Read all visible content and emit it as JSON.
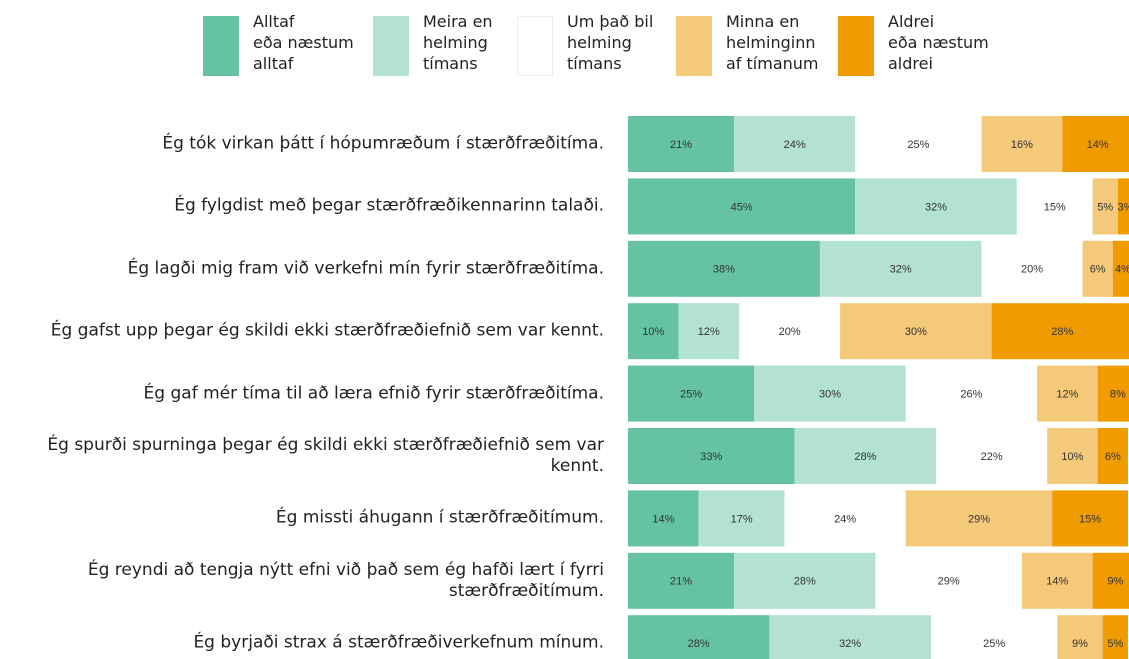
{
  "chart_data": {
    "type": "stacked_barh",
    "categories": [
      "Ég tók virkan þátt í hópumræðum í stærðfræðitíma.",
      "Ég fylgdist með þegar stærðfræðikennarinn talaði.",
      "Ég lagði mig fram við verkefni mín fyrir stærðfræðitíma.",
      "Ég gafst upp þegar ég skildi ekki stærðfræðiefnið sem var kennt.",
      "Ég gaf mér tíma til að læra efnið fyrir stærðfræðitíma.",
      "Ég spurði spurninga þegar ég skildi ekki stærðfræðiefnið sem var kennt.",
      "Ég missti áhugann í stærðfræðitímum.",
      "Ég reyndi að tengja nýtt efni við það sem ég hafði lært í fyrri stærðfræðitímum.",
      "Ég byrjaði strax á stærðfræðiverkefnum mínum."
    ],
    "series": [
      {
        "name": "Alltaf\neða næstum\nalltaf",
        "color": "#66c2a5",
        "values": [
          21,
          45,
          38,
          10,
          25,
          33,
          14,
          21,
          28
        ],
        "value_labels": [
          "21%",
          "45%",
          "38%",
          "10%",
          "25%",
          "33%",
          "14%",
          "21%",
          "28%"
        ]
      },
      {
        "name": "Meira en\nhelming\ntímans",
        "color": "#b3e2d4",
        "values": [
          24,
          32,
          32,
          12,
          30,
          28,
          17,
          28,
          32
        ],
        "value_labels": [
          "24%",
          "32%",
          "32%",
          "12%",
          "30%",
          "28%",
          "17%",
          "28%",
          "32%"
        ]
      },
      {
        "name": "Um það bil\nhelming\ntímans",
        "color": "#ffffff",
        "values": [
          25,
          15,
          20,
          20,
          26,
          22,
          24,
          29,
          25
        ],
        "value_labels": [
          "25%",
          "15%",
          "20%",
          "20%",
          "26%",
          "22%",
          "24%",
          "29%",
          "25%"
        ]
      },
      {
        "name": "Minna en\nhelminginn\naf tímanum",
        "color": "#f5c97a",
        "values": [
          16,
          5,
          6,
          30,
          12,
          10,
          29,
          14,
          9
        ],
        "value_labels": [
          "16%",
          "5%",
          "6%",
          "30%",
          "12%",
          "10%",
          "29%",
          "14%",
          "9%"
        ]
      },
      {
        "name": "Aldrei\neða næstum\naldrei",
        "color": "#f09c00",
        "values": [
          14,
          3,
          4,
          28,
          8,
          6,
          15,
          9,
          5
        ],
        "value_labels": [
          "14%",
          "3%",
          "4%",
          "28%",
          "8%",
          "6%",
          "15%",
          "9%",
          "5%"
        ]
      }
    ]
  }
}
